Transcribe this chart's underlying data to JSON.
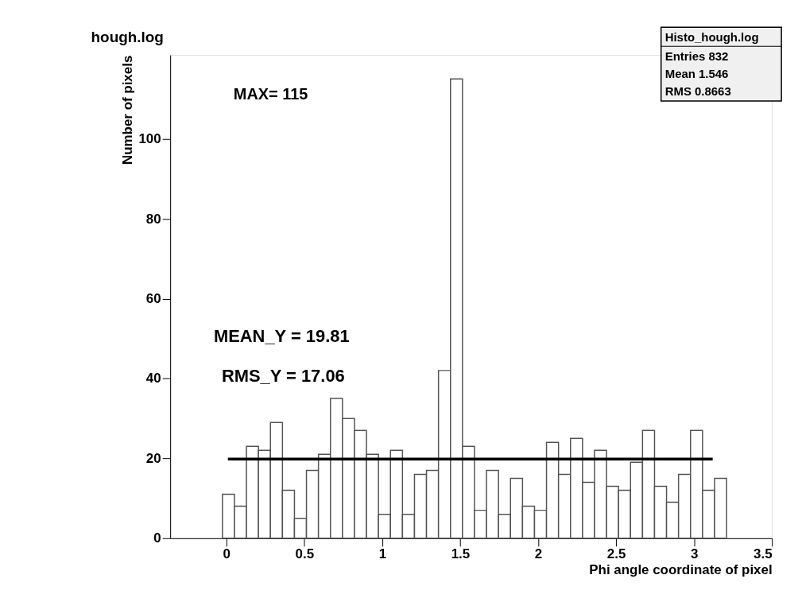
{
  "chart_data": {
    "type": "histogram",
    "title": "hough.log",
    "xlabel": "Phi angle coordinate of pixel",
    "ylabel": "Number of pixels",
    "bins": [
      -0.025,
      0.052,
      0.129,
      0.206,
      0.283,
      0.36,
      0.437,
      0.514,
      0.591,
      0.668,
      0.745,
      0.822,
      0.899,
      0.976,
      1.053,
      1.13,
      1.207,
      1.284,
      1.361,
      1.438,
      1.515,
      1.592,
      1.669,
      1.746,
      1.823,
      1.9,
      1.977,
      2.054,
      2.131,
      2.208,
      2.285,
      2.362,
      2.439,
      2.516,
      2.593,
      2.67,
      2.747,
      2.824,
      2.901,
      2.978,
      3.055,
      3.132,
      3.209
    ],
    "values": [
      11,
      8,
      23,
      22,
      29,
      12,
      5,
      17,
      21,
      35,
      30,
      27,
      21,
      6,
      22,
      6,
      16,
      17,
      42,
      115,
      23,
      7,
      17,
      6,
      15,
      8,
      7,
      24,
      16,
      25,
      14,
      22,
      13,
      12,
      19,
      27,
      13,
      9,
      16,
      27,
      12,
      15
    ],
    "color": "#555555",
    "series": [
      {
        "type": "line",
        "color": "#000000",
        "x": [
          0.01,
          3.12
        ],
        "values": [
          19.81,
          19.81
        ]
      }
    ],
    "xlim": [
      -0.36,
      3.5
    ],
    "xticks": [
      0,
      0.5,
      1,
      1.5,
      2,
      2.5,
      3,
      3.5
    ],
    "ylim": [
      0,
      121
    ],
    "yticks": [
      0,
      20,
      40,
      60,
      80,
      100
    ],
    "grid": false,
    "annotations": [
      "MAX=      115",
      "MEAN_Y = 19.81",
      "RMS_Y = 17.06",
      "Histo_hough.log",
      "Entries 832",
      "Mean 1.546",
      "RMS 0.8663"
    ]
  }
}
